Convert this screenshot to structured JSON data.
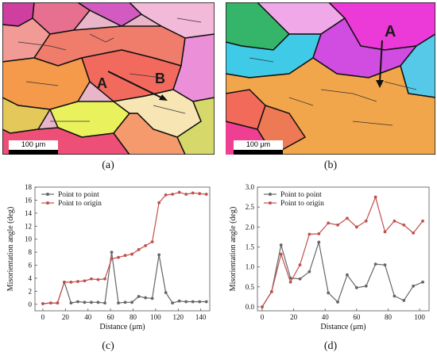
{
  "captions": {
    "a": "(a)",
    "b": "(b)",
    "c": "(c)",
    "d": "(d)"
  },
  "map_a": {
    "label_a": "A",
    "label_b": "B",
    "scale": "100 μm"
  },
  "map_b": {
    "label_a": "A",
    "scale": "100 μm"
  },
  "chart_data": [
    {
      "type": "line",
      "xlabel": "Distance (μm)",
      "ylabel": "Misorientation angle (deg)",
      "xlim": [
        -7,
        148
      ],
      "ylim": [
        -1,
        18
      ],
      "xticks": [
        0,
        20,
        40,
        60,
        80,
        100,
        120,
        140
      ],
      "yticks": [
        0,
        2,
        4,
        6,
        8,
        10,
        12,
        14,
        16,
        18
      ],
      "grid": false,
      "legend": "top-left",
      "series": [
        {
          "name": "Point to point",
          "color": "#666666",
          "x": [
            0,
            7,
            13,
            19,
            25,
            31,
            37,
            43,
            49,
            55,
            61,
            67,
            73,
            79,
            85,
            91,
            97,
            103,
            109,
            115,
            121,
            127,
            133,
            139,
            145
          ],
          "y": [
            0.1,
            0.2,
            0.2,
            3.4,
            0.2,
            0.4,
            0.3,
            0.3,
            0.3,
            0.2,
            8.0,
            0.2,
            0.3,
            0.3,
            1.2,
            1.0,
            0.9,
            7.6,
            1.8,
            0.2,
            0.5,
            0.4,
            0.4,
            0.4,
            0.4
          ]
        },
        {
          "name": "Point to origin",
          "color": "#c0504d",
          "x": [
            0,
            7,
            13,
            19,
            25,
            31,
            37,
            43,
            49,
            55,
            61,
            67,
            73,
            79,
            85,
            91,
            97,
            103,
            109,
            115,
            121,
            127,
            133,
            139,
            145
          ],
          "y": [
            0.1,
            0.2,
            0.2,
            3.4,
            3.4,
            3.5,
            3.6,
            3.9,
            3.8,
            3.9,
            7.0,
            7.2,
            7.5,
            7.7,
            8.4,
            9.0,
            9.6,
            15.6,
            16.8,
            16.9,
            17.2,
            16.9,
            17.1,
            17.0,
            16.9
          ]
        }
      ]
    },
    {
      "type": "line",
      "xlabel": "Distance (μm)",
      "ylabel": "Misorientation angle (deg)",
      "xlim": [
        -3,
        106
      ],
      "ylim": [
        -0.1,
        3.0
      ],
      "xticks": [
        0,
        20,
        40,
        60,
        80,
        100
      ],
      "yticks": [
        0.0,
        0.5,
        1.0,
        1.5,
        2.0,
        2.5,
        3.0
      ],
      "grid": false,
      "legend": "top-left",
      "series": [
        {
          "name": "Point to point",
          "color": "#666666",
          "x": [
            0,
            6,
            12,
            18,
            24,
            30,
            36,
            42,
            48,
            54,
            60,
            66,
            72,
            78,
            84,
            90,
            96,
            102
          ],
          "y": [
            0.0,
            0.38,
            1.55,
            0.72,
            0.7,
            0.88,
            1.62,
            0.35,
            0.12,
            0.8,
            0.48,
            0.52,
            1.07,
            1.05,
            0.27,
            0.16,
            0.52,
            0.62
          ]
        },
        {
          "name": "Point to origin",
          "color": "#c0504d",
          "x": [
            0,
            6,
            12,
            18,
            24,
            30,
            36,
            42,
            48,
            54,
            60,
            66,
            72,
            78,
            84,
            90,
            96,
            102
          ],
          "y": [
            0.0,
            0.38,
            1.32,
            0.62,
            1.05,
            1.82,
            1.83,
            2.1,
            2.05,
            2.22,
            2.0,
            2.15,
            2.75,
            1.88,
            2.15,
            2.05,
            1.85,
            2.15
          ]
        }
      ]
    }
  ]
}
